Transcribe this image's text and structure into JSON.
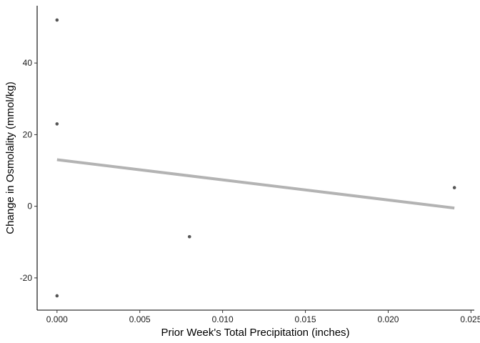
{
  "chart_data": {
    "type": "scatter",
    "title": "",
    "xlabel": "Prior Week's Total Precipitation (inches)",
    "ylabel": "Change in Osmolality (mmol/kg)",
    "xlim": [
      -0.0012,
      0.0252
    ],
    "ylim": [
      -29,
      56
    ],
    "x_ticks": [
      0.0,
      0.005,
      0.01,
      0.015,
      0.02,
      0.025
    ],
    "x_tick_labels": [
      "0.000",
      "0.005",
      "0.010",
      "0.015",
      "0.020",
      "0.025"
    ],
    "y_ticks": [
      -20,
      0,
      20,
      40
    ],
    "y_tick_labels": [
      "-20",
      "0",
      "20",
      "40"
    ],
    "points": [
      {
        "x": 0.0,
        "y": 52.0
      },
      {
        "x": 0.0,
        "y": 23.0
      },
      {
        "x": 0.0,
        "y": -25.0
      },
      {
        "x": 0.008,
        "y": -8.5
      },
      {
        "x": 0.024,
        "y": 5.2
      }
    ],
    "trend_line": {
      "x": [
        0.0,
        0.024
      ],
      "y": [
        13.0,
        -0.5
      ]
    },
    "grid": false,
    "legend": "none",
    "colors": {
      "points": "#555555",
      "trend_line": "#b3b3b3",
      "axis": "#000000"
    }
  }
}
